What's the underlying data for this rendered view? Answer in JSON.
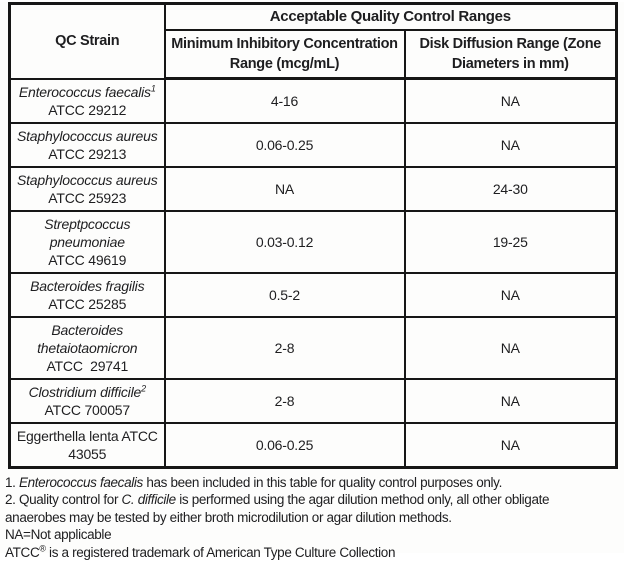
{
  "table": {
    "header": {
      "qc_strain": "QC Strain",
      "acceptable_title": "Acceptable Quality Control Ranges",
      "mic_header": "Minimum Inhibitory Concentration Range (mcg/mL)",
      "disk_header": "Disk Diffusion Range (Zone Diameters in mm)"
    },
    "rows": [
      {
        "strain_lines": [
          {
            "text": "Enterococcus faecalis",
            "italic": true,
            "sup": "1"
          },
          {
            "text": "ATCC 29212",
            "italic": false
          }
        ],
        "mic": "4-16",
        "disk": "NA"
      },
      {
        "strain_lines": [
          {
            "text": "Staphylococcus aureus",
            "italic": true
          },
          {
            "text": "ATCC 29213",
            "italic": false
          }
        ],
        "mic": "0.06-0.25",
        "disk": "NA"
      },
      {
        "strain_lines": [
          {
            "text": "Staphylococcus aureus",
            "italic": true
          },
          {
            "text": "ATCC 25923",
            "italic": false
          }
        ],
        "mic": "NA",
        "disk": "24-30"
      },
      {
        "strain_lines": [
          {
            "text": "Streptpcoccus",
            "italic": true
          },
          {
            "text": "pneumoniae",
            "italic": true
          },
          {
            "text": "ATCC 49619",
            "italic": false
          }
        ],
        "mic": "0.03-0.12",
        "disk": "19-25"
      },
      {
        "strain_lines": [
          {
            "text": "Bacteroides fragilis",
            "italic": true
          },
          {
            "text": "ATCC 25285",
            "italic": false
          }
        ],
        "mic": "0.5-2",
        "disk": "NA"
      },
      {
        "strain_lines": [
          {
            "text": "Bacteroides",
            "italic": true
          },
          {
            "text": "thetaiotaomicron",
            "italic": true
          },
          {
            "text": "ATCC  29741",
            "italic": false
          }
        ],
        "mic": "2-8",
        "disk": "NA"
      },
      {
        "strain_lines": [
          {
            "text": "Clostridium difficile",
            "italic": true,
            "sup": "2"
          },
          {
            "text": "ATCC 700057",
            "italic": false
          }
        ],
        "mic": "2-8",
        "disk": "NA"
      },
      {
        "strain_lines": [
          {
            "text": "Eggerthella lenta ATCC",
            "italic": false
          },
          {
            "text": "43055",
            "italic": false
          }
        ],
        "mic": "0.06-0.25",
        "disk": "NA"
      }
    ]
  },
  "footnotes": [
    [
      {
        "text": "1. "
      },
      {
        "text": "Enterococcus faecalis",
        "italic": true
      },
      {
        "text": " has been included in this table for quality control purposes only."
      }
    ],
    [
      {
        "text": "2. Quality control for "
      },
      {
        "text": "C. difficile",
        "italic": true
      },
      {
        "text": " is performed using the agar dilution method only, all other obligate"
      }
    ],
    [
      {
        "text": "anaerobes may be tested by either broth microdilution or agar dilution methods."
      }
    ],
    [
      {
        "text": "NA=Not applicable"
      }
    ],
    [
      {
        "text": "ATCC"
      },
      {
        "text": "®",
        "sup": true
      },
      {
        "text": " is a registered trademark of American Type Culture Collection"
      }
    ]
  ],
  "colors": {
    "text": "#1e1e20",
    "border": "#161616",
    "background": "#fdfdfc"
  }
}
